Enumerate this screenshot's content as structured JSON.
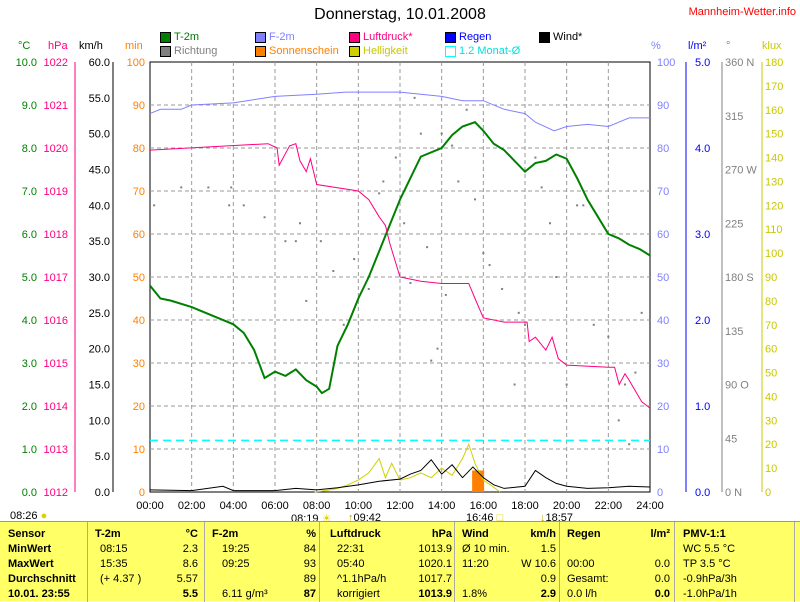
{
  "title": "Donnerstag, 10.01.2008",
  "brand": "Mannheim-Wetter.info",
  "legend": [
    {
      "label": "T-2m",
      "color": "#008000"
    },
    {
      "label": "Richtung",
      "color": "#808080"
    },
    {
      "label": "F-2m",
      "color": "#8080ff"
    },
    {
      "label": "Sonnenschein",
      "color": "#ff8000"
    },
    {
      "label": "Luftdruck*",
      "color": "#ff0080"
    },
    {
      "label": "Helligkeit",
      "color": "#d0d000"
    },
    {
      "label": "Regen",
      "color": "#0000ff"
    },
    {
      "label": "1.2 Monat-Ø",
      "color": "#00ffff"
    },
    {
      "label": "Wind*",
      "color": "#000000"
    }
  ],
  "units": {
    "c": "°C",
    "hpa": "hPa",
    "kmh": "km/h",
    "min": "min",
    "pct": "%",
    "rain": "l/m²",
    "deg": "°",
    "klux": "klux"
  },
  "sun": {
    "left": "08:26",
    "sunrise": "08:19",
    "t1": "09:42",
    "sunset": "16:46",
    "t2": "18:57"
  },
  "chart_data": {
    "type": "line",
    "x_ticks": [
      "00:00",
      "02:00",
      "04:00",
      "06:00",
      "08:00",
      "10:00",
      "12:00",
      "14:00",
      "16:00",
      "18:00",
      "20:00",
      "22:00",
      "24:00"
    ],
    "axes": {
      "c": {
        "range": [
          0,
          10
        ],
        "ticks": [
          "10.0",
          "9.0",
          "8.0",
          "7.0",
          "6.0",
          "5.0",
          "4.0",
          "3.0",
          "2.0",
          "1.0",
          "0.0"
        ]
      },
      "hpa": {
        "range": [
          1012,
          1022
        ],
        "ticks": [
          "1022",
          "1021",
          "1020",
          "1019",
          "1018",
          "1017",
          "1016",
          "1015",
          "1014",
          "1013",
          "1012"
        ]
      },
      "kmh": {
        "range": [
          0,
          60
        ],
        "ticks": [
          "60.0",
          "55.0",
          "50.0",
          "45.0",
          "40.0",
          "35.0",
          "30.0",
          "25.0",
          "20.0",
          "15.0",
          "10.0",
          "5.0",
          "0.0"
        ]
      },
      "min": {
        "range": [
          0,
          100
        ],
        "ticks": [
          "100",
          "90",
          "80",
          "70",
          "60",
          "50",
          "40",
          "30",
          "20",
          "10",
          "0"
        ]
      },
      "pct": {
        "range": [
          0,
          100
        ],
        "ticks": [
          "100",
          "90",
          "80",
          "70",
          "60",
          "50",
          "40",
          "30",
          "20",
          "10",
          "0"
        ]
      },
      "rain": {
        "range": [
          0,
          5
        ],
        "ticks": [
          "5.0",
          "4.0",
          "3.0",
          "2.0",
          "1.0",
          "0.0"
        ]
      },
      "deg": {
        "range": [
          0,
          360
        ],
        "ticks": [
          "360 N",
          "315",
          "270 W",
          "225",
          "180 S",
          "135",
          "90 O",
          "45",
          "0 N"
        ]
      },
      "klux": {
        "range": [
          0,
          180
        ],
        "ticks": [
          "180",
          "170",
          "160",
          "150",
          "140",
          "130",
          "120",
          "110",
          "100",
          "90",
          "80",
          "70",
          "60",
          "50",
          "40",
          "30",
          "20",
          "10",
          "0"
        ]
      }
    },
    "series": [
      {
        "name": "T-2m",
        "axis": "c",
        "color": "#008000",
        "width": 2,
        "points": [
          [
            0,
            4.8
          ],
          [
            0.5,
            4.5
          ],
          [
            1,
            4.45
          ],
          [
            2,
            4.3
          ],
          [
            3,
            4.1
          ],
          [
            4,
            3.9
          ],
          [
            4.5,
            3.7
          ],
          [
            5,
            3.3
          ],
          [
            5.5,
            2.65
          ],
          [
            6,
            2.8
          ],
          [
            6.5,
            2.7
          ],
          [
            7,
            2.85
          ],
          [
            7.5,
            2.6
          ],
          [
            8,
            2.45
          ],
          [
            8.25,
            2.3
          ],
          [
            8.6,
            2.4
          ],
          [
            9,
            3.4
          ],
          [
            9.5,
            3.9
          ],
          [
            10,
            4.5
          ],
          [
            10.5,
            5.0
          ],
          [
            11,
            5.6
          ],
          [
            11.5,
            6.2
          ],
          [
            12,
            6.8
          ],
          [
            12.5,
            7.3
          ],
          [
            13,
            7.8
          ],
          [
            14,
            8.0
          ],
          [
            14.5,
            8.3
          ],
          [
            15,
            8.5
          ],
          [
            15.6,
            8.6
          ],
          [
            16,
            8.4
          ],
          [
            16.5,
            8.1
          ],
          [
            17,
            7.95
          ],
          [
            17.5,
            7.7
          ],
          [
            18,
            7.45
          ],
          [
            18.5,
            7.65
          ],
          [
            19,
            7.7
          ],
          [
            19.5,
            7.85
          ],
          [
            20,
            7.75
          ],
          [
            20.5,
            7.3
          ],
          [
            21,
            6.8
          ],
          [
            21.5,
            6.4
          ],
          [
            22,
            6.0
          ],
          [
            22.5,
            5.9
          ],
          [
            23,
            5.75
          ],
          [
            23.5,
            5.65
          ],
          [
            24,
            5.5
          ]
        ]
      },
      {
        "name": "F-2m",
        "axis": "pct",
        "color": "#8080ff",
        "width": 1,
        "points": [
          [
            0,
            88
          ],
          [
            0.5,
            89
          ],
          [
            1.5,
            89
          ],
          [
            2,
            90
          ],
          [
            4,
            90.5
          ],
          [
            6,
            92
          ],
          [
            8,
            92.5
          ],
          [
            9.4,
            93
          ],
          [
            12,
            93
          ],
          [
            14,
            92
          ],
          [
            15,
            91
          ],
          [
            16,
            91
          ],
          [
            17,
            89
          ],
          [
            18,
            88
          ],
          [
            18.5,
            86
          ],
          [
            19.4,
            84
          ],
          [
            20,
            85
          ],
          [
            21,
            85.5
          ],
          [
            22,
            85
          ],
          [
            22.5,
            86
          ],
          [
            23,
            87
          ],
          [
            24,
            87
          ]
        ]
      },
      {
        "name": "Luftdruck*",
        "axis": "hpa",
        "color": "#ff0080",
        "width": 1,
        "points": [
          [
            0,
            1019.95
          ],
          [
            5.67,
            1020.1
          ],
          [
            6.1,
            1020.0
          ],
          [
            6.2,
            1019.6
          ],
          [
            6.7,
            1020.05
          ],
          [
            7,
            1020.1
          ],
          [
            7.2,
            1019.7
          ],
          [
            7.5,
            1019.45
          ],
          [
            7.7,
            1019.75
          ],
          [
            8,
            1019.15
          ],
          [
            10,
            1019.0
          ],
          [
            10.5,
            1018.8
          ],
          [
            11,
            1018.4
          ],
          [
            11.3,
            1018.2
          ],
          [
            11.5,
            1017.8
          ],
          [
            12,
            1017.0
          ],
          [
            13,
            1016.9
          ],
          [
            14,
            1016.85
          ],
          [
            15.3,
            1016.85
          ],
          [
            15.6,
            1016.5
          ],
          [
            16,
            1016.05
          ],
          [
            17,
            1015.95
          ],
          [
            18.1,
            1015.95
          ],
          [
            18.2,
            1015.5
          ],
          [
            18.5,
            1015.6
          ],
          [
            19,
            1015.3
          ],
          [
            19.3,
            1015.6
          ],
          [
            19.6,
            1015.1
          ],
          [
            20,
            1014.95
          ],
          [
            22,
            1014.9
          ],
          [
            22.3,
            1014.9
          ],
          [
            22.52,
            1014.5
          ],
          [
            22.8,
            1014.75
          ],
          [
            23,
            1014.6
          ],
          [
            23.3,
            1014.35
          ],
          [
            23.6,
            1014.1
          ],
          [
            24,
            1013.95
          ]
        ]
      },
      {
        "name": "Helligkeit",
        "axis": "klux",
        "color": "#d0d000",
        "width": 1,
        "points": [
          [
            7.9,
            0
          ],
          [
            8.4,
            0.5
          ],
          [
            9,
            1.5
          ],
          [
            9.5,
            3
          ],
          [
            10,
            5
          ],
          [
            10.5,
            8
          ],
          [
            11,
            14
          ],
          [
            11.3,
            6
          ],
          [
            11.6,
            12
          ],
          [
            12,
            5
          ],
          [
            12.5,
            6
          ],
          [
            13,
            8
          ],
          [
            13.5,
            6
          ],
          [
            14,
            10
          ],
          [
            14.5,
            7
          ],
          [
            15,
            14
          ],
          [
            15.3,
            20
          ],
          [
            15.6,
            12
          ],
          [
            16,
            5
          ],
          [
            16.5,
            2
          ],
          [
            16.8,
            0
          ]
        ]
      },
      {
        "name": "Wind*",
        "axis": "kmh",
        "color": "#000000",
        "width": 1,
        "points": [
          [
            0,
            0.3
          ],
          [
            2,
            0.2
          ],
          [
            3.5,
            0.8
          ],
          [
            4,
            0.2
          ],
          [
            6,
            0.2
          ],
          [
            7,
            0.5
          ],
          [
            8,
            0.3
          ],
          [
            9,
            0.6
          ],
          [
            10,
            1.0
          ],
          [
            11,
            1.5
          ],
          [
            12,
            1.8
          ],
          [
            12.5,
            2.5
          ],
          [
            13,
            3.0
          ],
          [
            13.5,
            4.5
          ],
          [
            14,
            2.5
          ],
          [
            14.5,
            3.8
          ],
          [
            15,
            2.0
          ],
          [
            15.5,
            3.5
          ],
          [
            16,
            2.0
          ],
          [
            16.5,
            1.0
          ],
          [
            17,
            0.5
          ],
          [
            18,
            0.8
          ],
          [
            18.5,
            3.0
          ],
          [
            19,
            2.0
          ],
          [
            19.5,
            1.2
          ],
          [
            20,
            0.8
          ],
          [
            21,
            0.5
          ],
          [
            22,
            0.6
          ],
          [
            23,
            0.8
          ],
          [
            24,
            0.7
          ]
        ]
      },
      {
        "name": "1.2 Monat-Ø",
        "axis": "c",
        "color": "#00ffff",
        "width": 1.5,
        "dash": true,
        "points": [
          [
            0,
            1.2
          ],
          [
            24,
            1.2
          ]
        ]
      }
    ],
    "sunshine": {
      "axis": "min",
      "color": "#ff8000",
      "bars": [
        [
          15.75,
          5
        ]
      ]
    },
    "richtung": {
      "axis": "deg",
      "color": "#808080",
      "points": [
        [
          0.2,
          240
        ],
        [
          1.5,
          255
        ],
        [
          2.8,
          255
        ],
        [
          3.8,
          240
        ],
        [
          3.9,
          255
        ],
        [
          4.5,
          240
        ],
        [
          5.5,
          230
        ],
        [
          6.5,
          210
        ],
        [
          7,
          210
        ],
        [
          7.2,
          225
        ],
        [
          7.5,
          160
        ],
        [
          8.2,
          210
        ],
        [
          8.8,
          185
        ],
        [
          9.3,
          140
        ],
        [
          9.8,
          195
        ],
        [
          10.5,
          170
        ],
        [
          11,
          250
        ],
        [
          11.2,
          260
        ],
        [
          11.8,
          280
        ],
        [
          12.2,
          225
        ],
        [
          12.5,
          175
        ],
        [
          12.7,
          330
        ],
        [
          13,
          300
        ],
        [
          13.3,
          205
        ],
        [
          13.5,
          110
        ],
        [
          13.8,
          120
        ],
        [
          14,
          300
        ],
        [
          14.2,
          165
        ],
        [
          14.5,
          290
        ],
        [
          14.8,
          260
        ],
        [
          15.2,
          320
        ],
        [
          15.6,
          245
        ],
        [
          16,
          200
        ],
        [
          16.3,
          190
        ],
        [
          16.9,
          170
        ],
        [
          17.5,
          90
        ],
        [
          17.7,
          150
        ],
        [
          18,
          140
        ],
        [
          18.5,
          280
        ],
        [
          18.8,
          255
        ],
        [
          19.2,
          225
        ],
        [
          19.5,
          180
        ],
        [
          20,
          90
        ],
        [
          20.5,
          240
        ],
        [
          20.8,
          240
        ],
        [
          21.3,
          140
        ],
        [
          22,
          130
        ],
        [
          22.5,
          60
        ],
        [
          22.8,
          90
        ],
        [
          23,
          40
        ],
        [
          23.3,
          100
        ],
        [
          23.6,
          150
        ]
      ]
    }
  },
  "table": {
    "headers": [
      "Sensor",
      "T-2m",
      "°C",
      "F-2m",
      "%",
      "Luftdruck",
      "hPa",
      "Wind",
      "km/h",
      "Regen",
      "l/m²",
      "PMV-1:1"
    ],
    "rows": [
      {
        "label": "MinWert",
        "t_time": "08:15",
        "t_val": "2.3",
        "f_time": "19:25",
        "f_val": "84",
        "p_time": "22:31",
        "p_val": "1013.9",
        "w_lbl": "Ø 10 min.",
        "w_val": "1.5",
        "r_lbl": "",
        "r_val": "",
        "pmv": "WC 5.5 °C"
      },
      {
        "label": "MaxWert",
        "t_time": "15:35",
        "t_val": "8.6",
        "f_time": "09:25",
        "f_val": "93",
        "p_time": "05:40",
        "p_val": "1020.1",
        "w_lbl": "11:20",
        "w_val": "W 10.6",
        "r_lbl": "00:00",
        "r_val": "0.0",
        "pmv": "TP 3.5 °C"
      },
      {
        "label": "Durchschnitt",
        "t_time": "(+ 4.37 )",
        "t_val": "5.57",
        "f_time": "",
        "f_val": "89",
        "p_time": "^1.1hPa/h",
        "p_val": "1017.7",
        "w_lbl": "",
        "w_val": "0.9",
        "r_lbl": "Gesamt:",
        "r_val": "0.0",
        "pmv": "-0.9hPa/3h"
      },
      {
        "label": "10.01. 23:55",
        "t_time": "",
        "t_val": "5.5",
        "f_time": "6.11 g/m³",
        "f_val": "87",
        "p_time": "korrigiert",
        "p_val": "1013.9",
        "w_lbl": "1.8%",
        "w_val": "2.9",
        "r_lbl": "0.0 l/h",
        "r_val": "0.0",
        "pmv": "-1.0hPa/1h"
      }
    ]
  }
}
